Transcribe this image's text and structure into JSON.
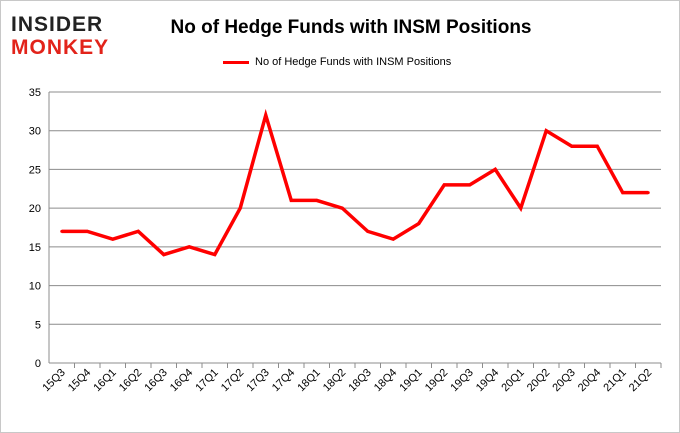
{
  "logo": {
    "line1": "INSIDER",
    "line2": "MONKEY"
  },
  "colors": {
    "series": "#ff0000",
    "grid": "#8c8c8c",
    "logo_red": "#e2231a"
  },
  "chart_data": {
    "type": "line",
    "title": "No of Hedge Funds with INSM Positions",
    "xlabel": "",
    "ylabel": "",
    "ylim": [
      0,
      35
    ],
    "yticks": [
      0,
      5,
      10,
      15,
      20,
      25,
      30,
      35
    ],
    "grid": true,
    "legend_position": "top-center",
    "categories": [
      "15Q3",
      "15Q4",
      "16Q1",
      "16Q2",
      "16Q3",
      "16Q4",
      "17Q1",
      "17Q2",
      "17Q3",
      "17Q4",
      "18Q1",
      "18Q2",
      "18Q3",
      "18Q4",
      "19Q1",
      "19Q2",
      "19Q3",
      "19Q4",
      "20Q1",
      "20Q2",
      "20Q3",
      "20Q4",
      "21Q1",
      "21Q2"
    ],
    "series": [
      {
        "name": "No of Hedge Funds with INSM  Positions",
        "values": [
          17,
          17,
          16,
          17,
          14,
          15,
          14,
          20,
          32,
          21,
          21,
          20,
          17,
          16,
          18,
          23,
          23,
          25,
          20,
          30,
          28,
          28,
          22,
          22
        ]
      }
    ]
  }
}
